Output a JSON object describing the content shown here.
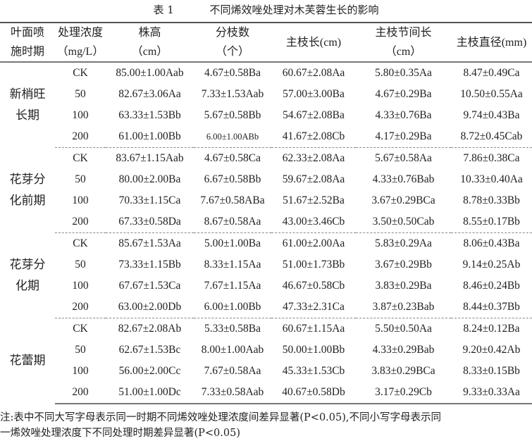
{
  "title": {
    "number": "表 1",
    "text": "不同烯效唑处理对木芙蓉生长的影响"
  },
  "headers": [
    {
      "line1": "叶面喷",
      "line2": "施时期"
    },
    {
      "line1": "处理浓度",
      "line2": "（mg/L）"
    },
    {
      "line1": "株高",
      "line2": "（cm）"
    },
    {
      "line1": "分枝数",
      "line2": "（个）"
    },
    {
      "line1": "主枝长(cm)",
      "line2": ""
    },
    {
      "line1": "主枝节间长",
      "line2": "（cm）"
    },
    {
      "line1": "主枝直径(mm)",
      "line2": ""
    }
  ],
  "groups": [
    {
      "period": [
        "新梢旺",
        "长期"
      ],
      "rows": [
        [
          "CK",
          "85.00±1.00Aab",
          "4.67±0.58Ba",
          "60.67±2.08Aa",
          "5.80±0.35Aa",
          "8.47±0.49Ca"
        ],
        [
          "50",
          "82.67±3.06Aa",
          "7.33±1.53Aab",
          "57.00±3.00Ba",
          "4.67±0.29Ba",
          "10.50±0.55Aa"
        ],
        [
          "100",
          "63.33±1.53Bb",
          "5.67±0.58Bb",
          "54.67±2.08Ba",
          "4.33±0.76Ba",
          "9.74±0.43Ba"
        ],
        [
          "200",
          "61.00±1.00Bb",
          "6.00±1.00ABb",
          "41.67±2.08Cb",
          "4.17±0.29Ba",
          "8.72±0.45Cab"
        ]
      ]
    },
    {
      "period": [
        "花芽分",
        "化前期"
      ],
      "rows": [
        [
          "CK",
          "83.67±1.15Aab",
          "4.67±0.58Ca",
          "62.33±2.08Aa",
          "5.67±0.58Aa",
          "7.86±0.38Ca"
        ],
        [
          "50",
          "80.00±2.00Ba",
          "6.67±0.58Bb",
          "59.67±2.08Aa",
          "4.33±0.76Bab",
          "10.33±0.40Aa"
        ],
        [
          "100",
          "70.33±1.15Ca",
          "7.67±0.58ABa",
          "51.67±2.52Ba",
          "3.67±0.29BCa",
          "8.78±0.33Bb"
        ],
        [
          "200",
          "67.33±0.58Da",
          "8.67±0.58Aa",
          "43.00±3.46Cb",
          "3.50±0.50Cab",
          "8.55±0.17Bb"
        ]
      ]
    },
    {
      "period": [
        "花芽分",
        "化期"
      ],
      "rows": [
        [
          "CK",
          "85.67±1.53Aa",
          "5.00±1.00Ba",
          "61.00±2.00Aa",
          "5.83±0.29Aa",
          "8.06±0.43Ba"
        ],
        [
          "50",
          "73.33±1.15Bb",
          "8.33±1.15Aa",
          "51.00±1.73Bb",
          "3.67±0.29Bb",
          "9.14±0.25Ab"
        ],
        [
          "100",
          "67.67±1.53Ca",
          "7.67±1.15Aa",
          "46.67±0.58Cb",
          "3.83±0.29Ba",
          "8.46±0.24Bb"
        ],
        [
          "200",
          "63.00±2.00Db",
          "6.00±1.00Bb",
          "47.33±2.31Ca",
          "3.87±0.23Bab",
          "8.44±0.37Bb"
        ]
      ]
    },
    {
      "period": [
        "花蕾期"
      ],
      "rows": [
        [
          "CK",
          "82.67±2.08Ab",
          "5.33±0.58Ba",
          "60.67±1.15Aa",
          "5.50±0.50Aa",
          "8.24±0.12Ba"
        ],
        [
          "50",
          "62.67±1.53Bc",
          "8.00±1.00Aab",
          "50.00±1.00Bb",
          "4.33±0.29Bab",
          "9.20±0.42Ab"
        ],
        [
          "100",
          "56.00±2.00Cc",
          "7.67±0.58Aa",
          "45.33±1.53Cb",
          "3.83±0.29BCa",
          "8.33±0.15Bb"
        ],
        [
          "200",
          "51.00±1.00Dc",
          "7.33±0.58Aab",
          "40.67±0.58Db",
          "3.17±0.29Cb",
          "9.33±0.33Aa"
        ]
      ]
    }
  ],
  "note": {
    "line1": "注:表中不同大写字母表示同一时期不同烯效唑处理浓度间差异显著(P<0.05),不同小写字母表示同",
    "line2": "一烯效唑处理浓度下不同处理时期差异显著(P<0.05)"
  }
}
